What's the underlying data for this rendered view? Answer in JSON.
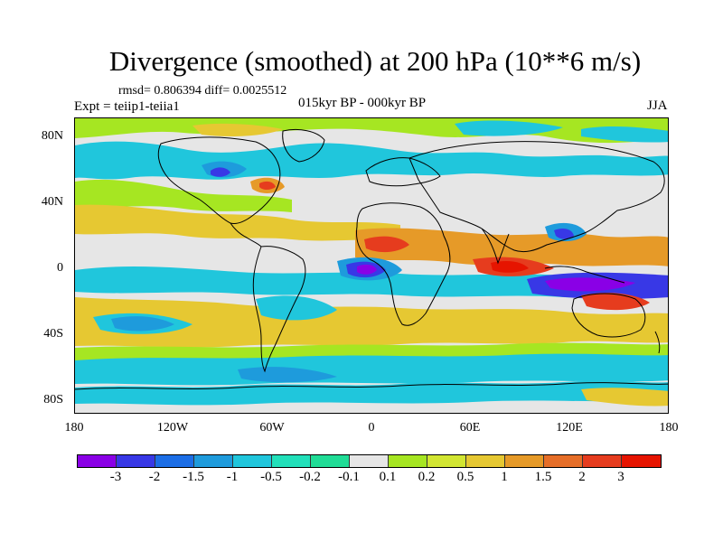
{
  "title": "Divergence (smoothed) at 200 hPa (10**6 m/s)",
  "stats": "rmsd= 0.806394 diff= 0.0025512",
  "left_label": "Expt = teiip1-teiia1",
  "center_label": "015kyr BP - 000kyr BP",
  "right_label": "JJA",
  "map_data": {
    "type": "filled-contour-map",
    "projection": "cylindrical-equidistant",
    "lon_range": [
      -180,
      180
    ],
    "lat_range": [
      -90,
      90
    ],
    "y_ticks": [
      "80N",
      "40N",
      "0",
      "40S",
      "80S"
    ],
    "x_ticks": [
      "180",
      "120W",
      "60W",
      "0",
      "60E",
      "120E",
      "180"
    ],
    "colorbar": {
      "labels": [
        "-3",
        "-2",
        "-1.5",
        "-1",
        "-0.5",
        "-0.2",
        "-0.1",
        "0.1",
        "0.2",
        "0.5",
        "1",
        "1.5",
        "2",
        "3"
      ],
      "colors": [
        "#8a00e6",
        "#3838e6",
        "#1c6ee6",
        "#1e9bdc",
        "#20c6dc",
        "#22e0ba",
        "#20dc96",
        "#e6e6e6",
        "#a6e622",
        "#d2e632",
        "#e6c832",
        "#e69a28",
        "#e66e28",
        "#e63c1e",
        "#e61400"
      ]
    }
  }
}
